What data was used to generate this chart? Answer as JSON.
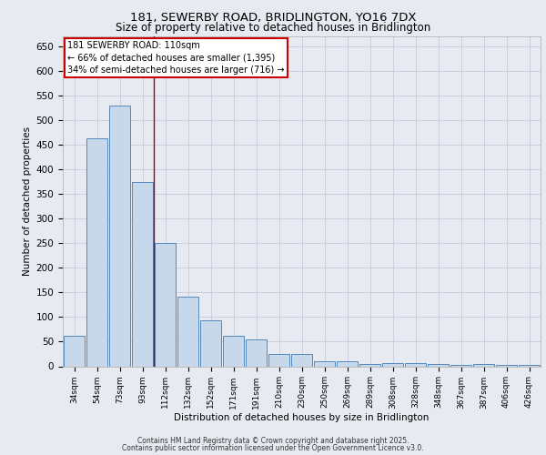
{
  "title_line1": "181, SEWERBY ROAD, BRIDLINGTON, YO16 7DX",
  "title_line2": "Size of property relative to detached houses in Bridlington",
  "xlabel": "Distribution of detached houses by size in Bridlington",
  "ylabel": "Number of detached properties",
  "categories": [
    "34sqm",
    "54sqm",
    "73sqm",
    "93sqm",
    "112sqm",
    "132sqm",
    "152sqm",
    "171sqm",
    "191sqm",
    "210sqm",
    "230sqm",
    "250sqm",
    "269sqm",
    "289sqm",
    "308sqm",
    "328sqm",
    "348sqm",
    "367sqm",
    "387sqm",
    "406sqm",
    "426sqm"
  ],
  "values": [
    62,
    463,
    530,
    375,
    250,
    142,
    93,
    62,
    55,
    25,
    25,
    10,
    10,
    5,
    7,
    7,
    4,
    3,
    5,
    3,
    3
  ],
  "bar_color": "#c6d8ea",
  "bar_edge_color": "#5588bb",
  "grid_color": "#c0c4d8",
  "background_color": "#e8eaf2",
  "vline_x": 3.5,
  "vline_color": "#aa0000",
  "annotation_text_line1": "181 SEWERBY ROAD: 110sqm",
  "annotation_text_line2": "← 66% of detached houses are smaller (1,395)",
  "annotation_text_line3": "34% of semi-detached houses are larger (716) →",
  "ylim": [
    0,
    670
  ],
  "yticks": [
    0,
    50,
    100,
    150,
    200,
    250,
    300,
    350,
    400,
    450,
    500,
    550,
    600,
    650
  ],
  "footer_line1": "Contains HM Land Registry data © Crown copyright and database right 2025.",
  "footer_line2": "Contains public sector information licensed under the Open Government Licence v3.0."
}
